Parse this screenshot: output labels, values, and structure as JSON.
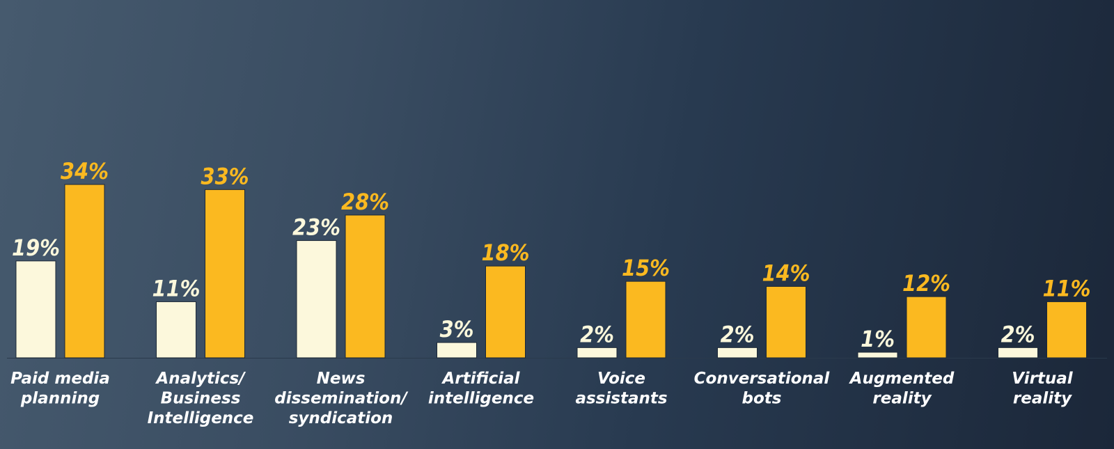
{
  "colors": {
    "series_a": "#fcf8dc",
    "series_b": "#fbb920"
  },
  "chart_data": {
    "type": "bar",
    "categories": [
      [
        "Paid media",
        "planning"
      ],
      [
        "Analytics/",
        "Business",
        "Intelligence"
      ],
      [
        "News",
        "dissemination/",
        "syndication"
      ],
      [
        "Artificial",
        "intelligence"
      ],
      [
        "Voice",
        "assistants"
      ],
      [
        "Conversational",
        "bots"
      ],
      [
        "Augmented",
        "reality"
      ],
      [
        "Virtual",
        "reality"
      ]
    ],
    "series": [
      {
        "values": [
          19,
          11,
          23,
          3,
          2,
          2,
          1,
          2
        ],
        "labels": [
          "19%",
          "11%",
          "23%",
          "3%",
          "2%",
          "2%",
          "1%",
          "2%"
        ]
      },
      {
        "values": [
          34,
          33,
          28,
          18,
          15,
          14,
          12,
          11
        ],
        "labels": [
          "34%",
          "33%",
          "28%",
          "18%",
          "15%",
          "14%",
          "12%",
          "11%"
        ]
      }
    ],
    "ylim": [
      0,
      34
    ],
    "grid": false,
    "legend": "none"
  }
}
